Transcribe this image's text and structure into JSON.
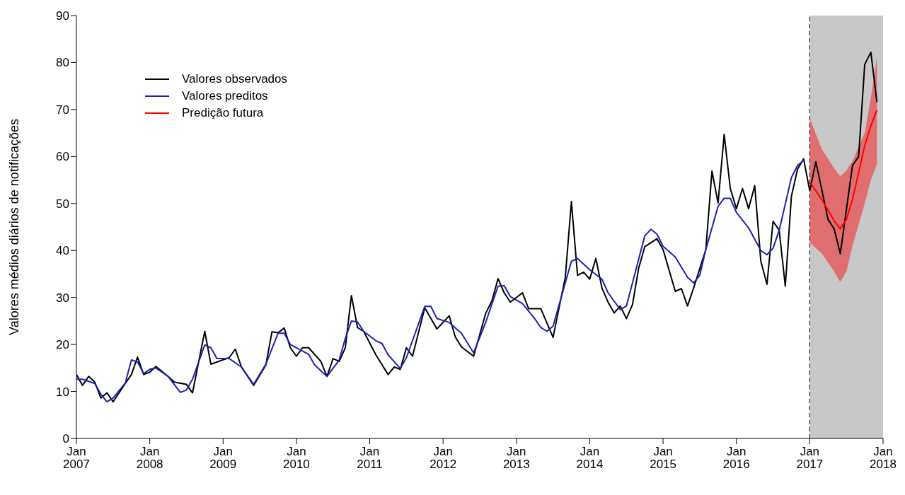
{
  "chart_data": {
    "type": "line",
    "ylabel": "Valores médios diários de notificações",
    "xlim": [
      "2007-01",
      "2018-01"
    ],
    "xticks": [
      {
        "value": "2007-01",
        "label": "Jan 2007"
      },
      {
        "value": "2008-01",
        "label": "Jan 2008"
      },
      {
        "value": "2009-01",
        "label": "Jan 2009"
      },
      {
        "value": "2010-01",
        "label": "Jan 2010"
      },
      {
        "value": "2011-01",
        "label": "Jan 2011"
      },
      {
        "value": "2012-01",
        "label": "Jan 2012"
      },
      {
        "value": "2013-01",
        "label": "Jan 2013"
      },
      {
        "value": "2014-01",
        "label": "Jan 2014"
      },
      {
        "value": "2015-01",
        "label": "Jan 2015"
      },
      {
        "value": "2016-01",
        "label": "Jan 2016"
      },
      {
        "value": "2017-01",
        "label": "Jan 2017"
      },
      {
        "value": "2018-01",
        "label": "Jan 2018"
      }
    ],
    "ylim": [
      0,
      90
    ],
    "yticks": [
      0,
      10,
      20,
      30,
      40,
      50,
      60,
      70,
      80,
      90
    ],
    "grid": false,
    "legend": "top left",
    "line_style": "solid",
    "marker": "none",
    "bands": [
      {
        "axis": "x",
        "from": "2017-01",
        "to": "2018-01",
        "color": "#c8c8c8"
      }
    ],
    "ref_lines": [
      {
        "axis": "x",
        "value": "2017-01",
        "color": "#000000",
        "line_style": "dashed"
      }
    ],
    "series": [
      {
        "name": "Valores observados",
        "color": "#000000",
        "x": [
          "2007-01",
          "2007-02",
          "2007-03",
          "2007-04",
          "2007-05",
          "2007-06",
          "2007-07",
          "2007-09",
          "2007-10",
          "2007-11",
          "2007-12",
          "2008-01",
          "2008-02",
          "2008-04",
          "2008-05",
          "2008-07",
          "2008-08",
          "2008-10",
          "2008-11",
          "2009-02",
          "2009-03",
          "2009-04",
          "2009-06",
          "2009-08",
          "2009-09",
          "2009-10",
          "2009-11",
          "2009-12",
          "2010-01",
          "2010-02",
          "2010-03",
          "2010-05",
          "2010-06",
          "2010-07",
          "2010-08",
          "2010-09",
          "2010-10",
          "2010-11",
          "2010-12",
          "2011-02",
          "2011-04",
          "2011-05",
          "2011-06",
          "2011-07",
          "2011-08",
          "2011-10",
          "2011-12",
          "2012-02",
          "2012-03",
          "2012-04",
          "2012-06",
          "2012-08",
          "2012-09",
          "2012-10",
          "2012-11",
          "2012-12",
          "2013-02",
          "2013-03",
          "2013-05",
          "2013-07",
          "2013-09",
          "2013-10",
          "2013-11",
          "2013-12",
          "2014-01",
          "2014-02",
          "2014-03",
          "2014-04",
          "2014-05",
          "2014-06",
          "2014-07",
          "2014-08",
          "2014-09",
          "2014-10",
          "2014-12",
          "2015-01",
          "2015-03",
          "2015-04",
          "2015-05",
          "2015-06",
          "2015-08",
          "2015-09",
          "2015-10",
          "2015-11",
          "2015-12",
          "2016-01",
          "2016-02",
          "2016-03",
          "2016-04",
          "2016-05",
          "2016-06",
          "2016-07",
          "2016-08",
          "2016-09",
          "2016-10",
          "2016-11",
          "2016-12",
          "2017-01",
          "2017-02",
          "2017-04",
          "2017-05",
          "2017-06",
          "2017-08",
          "2017-09",
          "2017-10",
          "2017-11",
          "2017-12"
        ],
        "values": [
          13.6,
          11.3,
          13.2,
          12.0,
          8.6,
          9.7,
          7.8,
          11.7,
          13.6,
          17.3,
          13.6,
          14.1,
          15.3,
          13.2,
          12.0,
          11.5,
          9.7,
          22.8,
          15.8,
          17.2,
          19.0,
          15.2,
          11.3,
          15.6,
          22.7,
          22.5,
          23.5,
          19.3,
          17.5,
          19.3,
          19.3,
          16.4,
          13.2,
          17.0,
          16.4,
          19.3,
          30.4,
          23.6,
          22.8,
          17.8,
          13.6,
          15.2,
          14.7,
          19.3,
          17.5,
          27.8,
          23.3,
          26.1,
          21.6,
          19.5,
          17.5,
          26.7,
          29.3,
          34.0,
          31.0,
          29.0,
          31.0,
          27.6,
          27.6,
          21.5,
          34.3,
          50.4,
          34.7,
          35.4,
          33.9,
          38.3,
          32.0,
          29.0,
          26.7,
          28.2,
          25.5,
          28.5,
          36.2,
          40.8,
          42.5,
          40.2,
          31.3,
          31.9,
          28.2,
          32.0,
          40.2,
          56.9,
          50.1,
          64.7,
          53.2,
          48.9,
          53.2,
          48.9,
          53.8,
          37.7,
          32.8,
          46.2,
          44.3,
          32.4,
          51.5,
          57.3,
          59.5,
          52.7,
          58.9,
          46.6,
          44.6,
          39.3,
          58.1,
          60.0,
          79.6,
          82.2,
          71.6
        ]
      },
      {
        "name": "Valores preditos",
        "color": "#2020b0",
        "x": [
          "2007-01",
          "2007-02",
          "2007-04",
          "2007-05",
          "2007-06",
          "2007-07",
          "2007-09",
          "2007-10",
          "2007-11",
          "2007-12",
          "2008-01",
          "2008-02",
          "2008-04",
          "2008-06",
          "2008-07",
          "2008-08",
          "2008-10",
          "2008-11",
          "2008-12",
          "2009-02",
          "2009-04",
          "2009-06",
          "2009-08",
          "2009-10",
          "2009-11",
          "2009-12",
          "2010-02",
          "2010-03",
          "2010-04",
          "2010-06",
          "2010-08",
          "2010-09",
          "2010-10",
          "2010-11",
          "2010-12",
          "2011-02",
          "2011-03",
          "2011-04",
          "2011-06",
          "2011-07",
          "2011-10",
          "2011-11",
          "2011-12",
          "2012-02",
          "2012-04",
          "2012-06",
          "2012-08",
          "2012-10",
          "2012-11",
          "2012-12",
          "2013-02",
          "2013-04",
          "2013-05",
          "2013-06",
          "2013-07",
          "2013-09",
          "2013-10",
          "2013-11",
          "2014-01",
          "2014-03",
          "2014-04",
          "2014-06",
          "2014-07",
          "2014-08",
          "2014-10",
          "2014-11",
          "2014-12",
          "2015-01",
          "2015-03",
          "2015-05",
          "2015-06",
          "2015-07",
          "2015-08",
          "2015-10",
          "2015-11",
          "2015-12",
          "2016-01",
          "2016-03",
          "2016-05",
          "2016-06",
          "2016-07",
          "2016-08",
          "2016-10",
          "2016-11",
          "2016-12"
        ],
        "values": [
          12.6,
          12.6,
          11.7,
          9.4,
          7.8,
          8.6,
          11.8,
          16.7,
          16.3,
          13.8,
          14.7,
          15.0,
          13.2,
          9.8,
          10.3,
          12.6,
          19.9,
          19.3,
          17.0,
          17.0,
          15.2,
          11.5,
          15.8,
          22.4,
          22.4,
          20.0,
          18.6,
          17.9,
          15.6,
          13.2,
          16.7,
          21.3,
          25.0,
          24.8,
          22.8,
          20.8,
          20.2,
          17.8,
          14.9,
          17.2,
          28.1,
          28.1,
          25.5,
          24.7,
          22.4,
          18.2,
          24.8,
          32.4,
          32.5,
          30.2,
          28.7,
          25.5,
          23.6,
          22.8,
          23.9,
          33.1,
          37.7,
          38.3,
          35.9,
          33.9,
          31.0,
          27.4,
          28.2,
          33.1,
          43.1,
          44.5,
          43.5,
          40.9,
          38.6,
          34.3,
          33.1,
          34.7,
          40.2,
          49.4,
          51.1,
          51.1,
          48.1,
          44.8,
          40.0,
          39.1,
          40.5,
          44.3,
          55.5,
          58.1,
          59.2
        ]
      },
      {
        "name": "Predição futura",
        "color": "#ff0000",
        "x": [
          "2017-01",
          "2017-03",
          "2017-05",
          "2017-06",
          "2017-07",
          "2017-08",
          "2017-10",
          "2017-11",
          "2017-12"
        ],
        "values": [
          54.6,
          50.8,
          46.3,
          44.6,
          46.6,
          50.9,
          62.3,
          66.5,
          69.9
        ],
        "lower": [
          41.7,
          39.3,
          35.5,
          33.3,
          35.5,
          41.0,
          50.0,
          55.0,
          58.4
        ],
        "upper": [
          68.1,
          61.5,
          57.5,
          55.8,
          57.0,
          59.0,
          65.0,
          72.5,
          81.1
        ]
      }
    ]
  }
}
